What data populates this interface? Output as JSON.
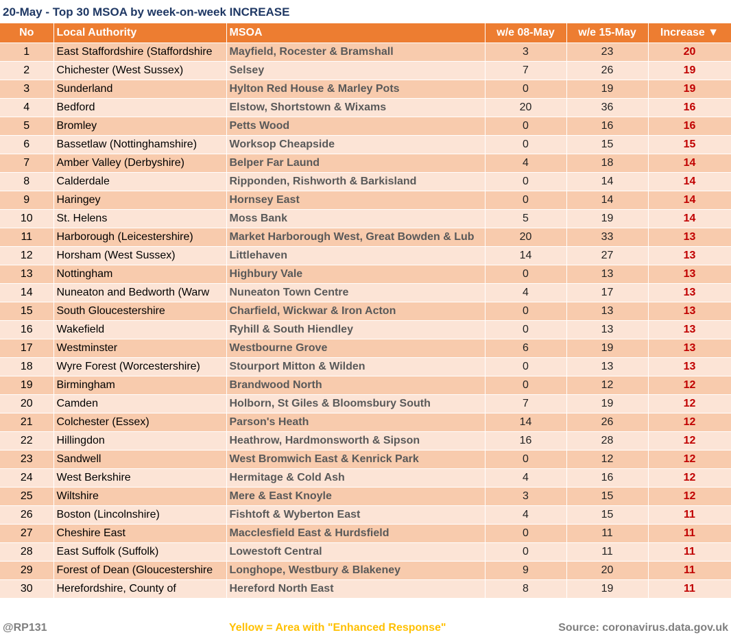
{
  "title": "20-May - Top 30 MSOA by week-on-week INCREASE",
  "table": {
    "headers": [
      "No",
      "Local Authority",
      "MSOA",
      "w/e 08-May",
      "w/e 15-May",
      "Increase ▼"
    ],
    "rows": [
      [
        1,
        "East Staffordshire (Staffordshire",
        "Mayfield, Rocester & Bramshall",
        3,
        23,
        20
      ],
      [
        2,
        "Chichester (West Sussex)",
        "Selsey",
        7,
        26,
        19
      ],
      [
        3,
        "Sunderland",
        "Hylton Red House & Marley Pots",
        0,
        19,
        19
      ],
      [
        4,
        "Bedford",
        "Elstow, Shortstown & Wixams",
        20,
        36,
        16
      ],
      [
        5,
        "Bromley",
        "Petts Wood",
        0,
        16,
        16
      ],
      [
        6,
        "Bassetlaw (Nottinghamshire)",
        "Worksop Cheapside",
        0,
        15,
        15
      ],
      [
        7,
        "Amber Valley (Derbyshire)",
        "Belper Far Laund",
        4,
        18,
        14
      ],
      [
        8,
        "Calderdale",
        "Ripponden, Rishworth & Barkisland",
        0,
        14,
        14
      ],
      [
        9,
        "Haringey",
        "Hornsey East",
        0,
        14,
        14
      ],
      [
        10,
        "St. Helens",
        "Moss Bank",
        5,
        19,
        14
      ],
      [
        11,
        "Harborough (Leicestershire)",
        "Market Harborough West, Great Bowden & Lub",
        20,
        33,
        13
      ],
      [
        12,
        "Horsham (West Sussex)",
        "Littlehaven",
        14,
        27,
        13
      ],
      [
        13,
        "Nottingham",
        "Highbury Vale",
        0,
        13,
        13
      ],
      [
        14,
        "Nuneaton and Bedworth (Warw",
        "Nuneaton Town Centre",
        4,
        17,
        13
      ],
      [
        15,
        "South Gloucestershire",
        "Charfield, Wickwar & Iron Acton",
        0,
        13,
        13
      ],
      [
        16,
        "Wakefield",
        "Ryhill & South Hiendley",
        0,
        13,
        13
      ],
      [
        17,
        "Westminster",
        "Westbourne Grove",
        6,
        19,
        13
      ],
      [
        18,
        "Wyre Forest (Worcestershire)",
        "Stourport Mitton & Wilden",
        0,
        13,
        13
      ],
      [
        19,
        "Birmingham",
        "Brandwood North",
        0,
        12,
        12
      ],
      [
        20,
        "Camden",
        "Holborn, St Giles & Bloomsbury South",
        7,
        19,
        12
      ],
      [
        21,
        "Colchester (Essex)",
        "Parson's Heath",
        14,
        26,
        12
      ],
      [
        22,
        "Hillingdon",
        "Heathrow, Hardmonsworth & Sipson",
        16,
        28,
        12
      ],
      [
        23,
        "Sandwell",
        "West Bromwich East & Kenrick Park",
        0,
        12,
        12
      ],
      [
        24,
        "West Berkshire",
        "Hermitage & Cold Ash",
        4,
        16,
        12
      ],
      [
        25,
        "Wiltshire",
        "Mere & East Knoyle",
        3,
        15,
        12
      ],
      [
        26,
        "Boston (Lincolnshire)",
        "Fishtoft & Wyberton East",
        4,
        15,
        11
      ],
      [
        27,
        "Cheshire East",
        "Macclesfield East & Hurdsfield",
        0,
        11,
        11
      ],
      [
        28,
        "East Suffolk (Suffolk)",
        "Lowestoft Central",
        0,
        11,
        11
      ],
      [
        29,
        "Forest of Dean (Gloucestershire",
        "Longhope, Westbury & Blakeney",
        9,
        20,
        11
      ],
      [
        30,
        "Herefordshire, County of",
        "Hereford North East",
        8,
        19,
        11
      ]
    ]
  },
  "footer": {
    "handle": "@RP131",
    "note": "Yellow = Area with \"Enhanced Response\"",
    "source": "Source: coronavirus.data.gov.uk"
  }
}
